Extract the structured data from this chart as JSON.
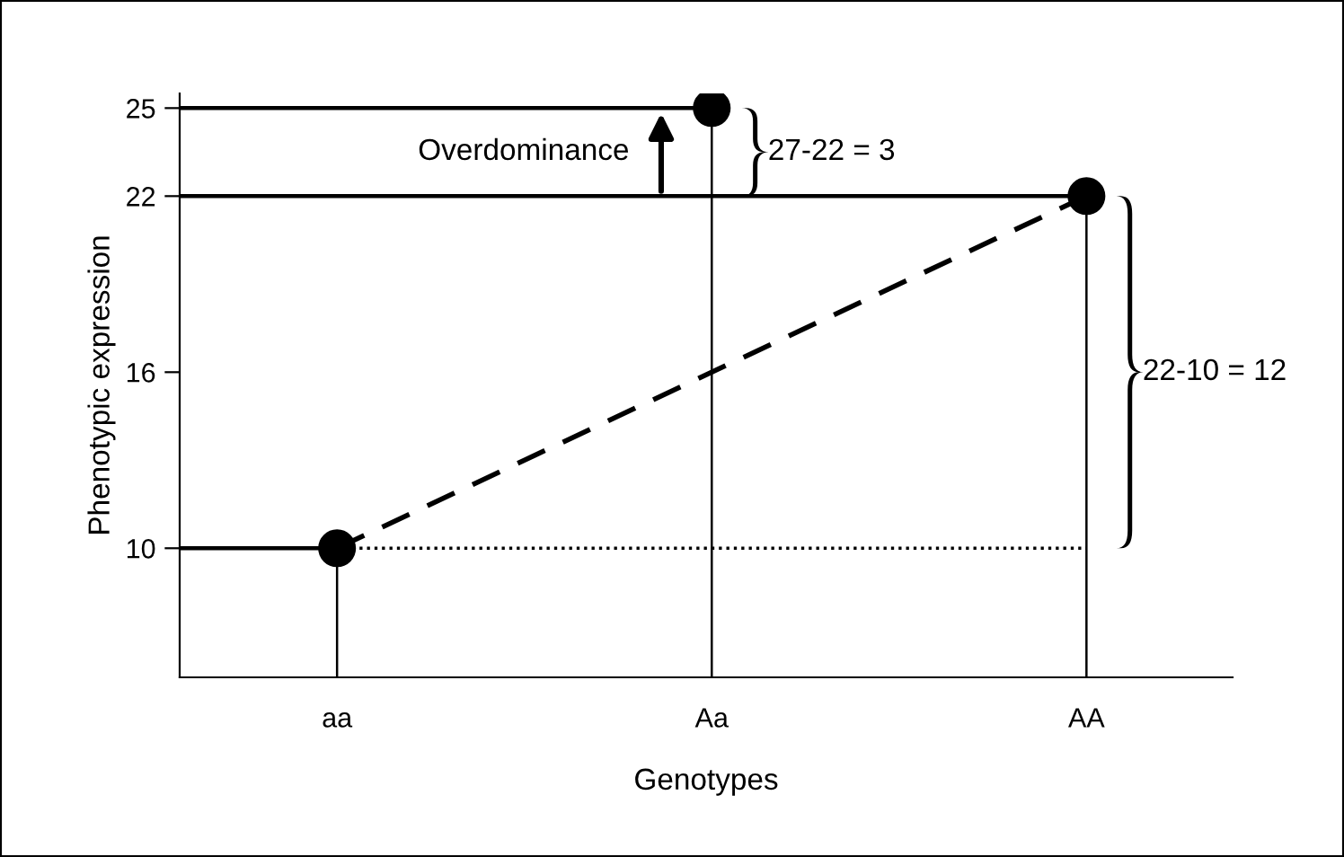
{
  "chart_data": {
    "type": "lollipop",
    "xlabel": "Genotypes",
    "ylabel": "Phenotypic expression",
    "categories": [
      "aa",
      "Aa",
      "AA"
    ],
    "series": [
      {
        "color": "#000000",
        "values": [
          10,
          25,
          22
        ],
        "marker": "circle"
      },
      {
        "type": "line",
        "color": "#000000",
        "values": [
          10,
          16,
          22
        ],
        "line_style": "dashed",
        "marker": "none"
      },
      {
        "type": "line",
        "color": "#000000",
        "values": [
          10,
          10,
          10
        ],
        "line_style": "dotted",
        "marker": "none"
      }
    ],
    "ref_lines": [
      {
        "axis": "y",
        "value": 25,
        "color": "#000000",
        "line_style": "solid"
      },
      {
        "axis": "y",
        "value": 22,
        "color": "#000000",
        "line_style": "solid"
      },
      {
        "axis": "y",
        "value": 10,
        "color": "#000000",
        "line_style": "solid"
      }
    ],
    "ylim": [
      5.6,
      25.5
    ],
    "yticks": [
      10,
      16,
      22,
      25
    ],
    "grid": false,
    "annotations": [
      "Overdominance",
      "27-22 = 3",
      "22-10 = 12"
    ]
  }
}
